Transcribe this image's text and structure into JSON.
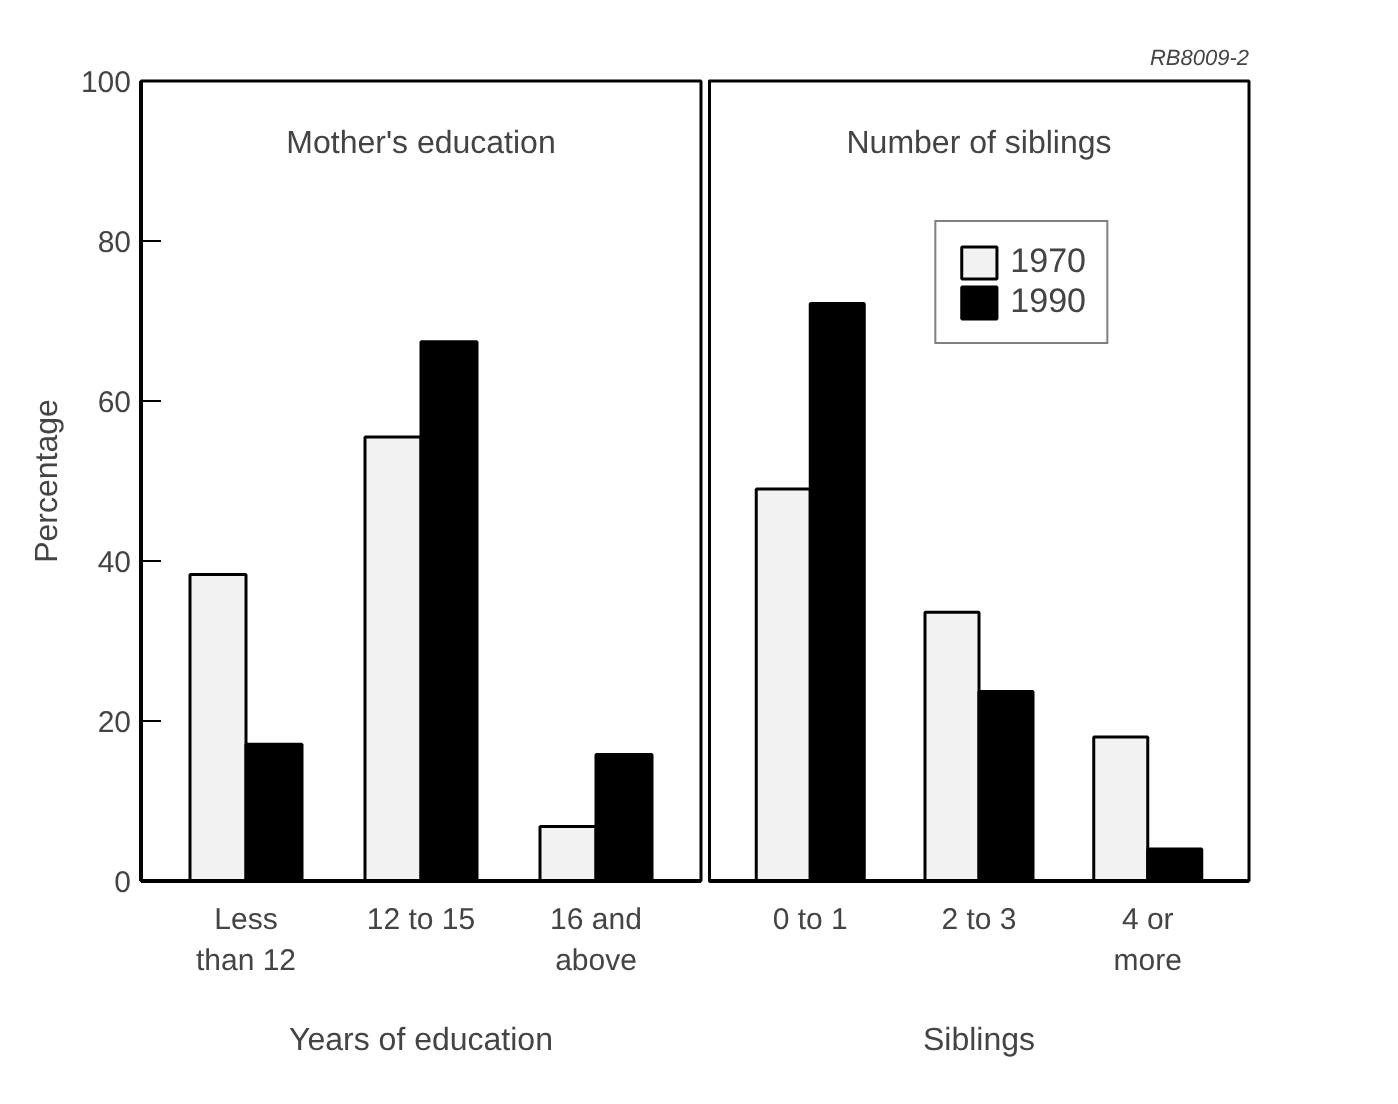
{
  "chart_data": [
    {
      "type": "bar",
      "title": "Mother's education",
      "xlabel": "Years of education",
      "ylabel": "Percentage",
      "categories": [
        "Less than 12",
        "12 to 15",
        "16 and above"
      ],
      "series": [
        {
          "color": "#f2f2f2",
          "values": [
            38.3,
            55.5,
            6.8
          ]
        },
        {
          "color": "#000000",
          "values": [
            17.1,
            67.4,
            15.8
          ]
        }
      ],
      "ylim": [
        0,
        100
      ],
      "yticks": [
        0,
        20,
        40,
        60,
        80,
        100
      ],
      "grid": false,
      "legend": false
    },
    {
      "type": "bar",
      "title": "Number of siblings",
      "xlabel": "Siblings",
      "categories": [
        "0 to 1",
        "2 to 3",
        "4 or more"
      ],
      "series": [
        {
          "name": "1970",
          "color": "#f2f2f2",
          "values": [
            49,
            33.6,
            18
          ]
        },
        {
          "name": "1990",
          "color": "#000000",
          "values": [
            72.2,
            23.7,
            4
          ]
        }
      ],
      "ylim": [
        0,
        100
      ],
      "yticks": [
        0,
        20,
        40,
        60,
        80,
        100
      ],
      "grid": false,
      "legend": "top right",
      "tick_labels": "x",
      "annotations": [
        "RB8009-2"
      ]
    }
  ]
}
